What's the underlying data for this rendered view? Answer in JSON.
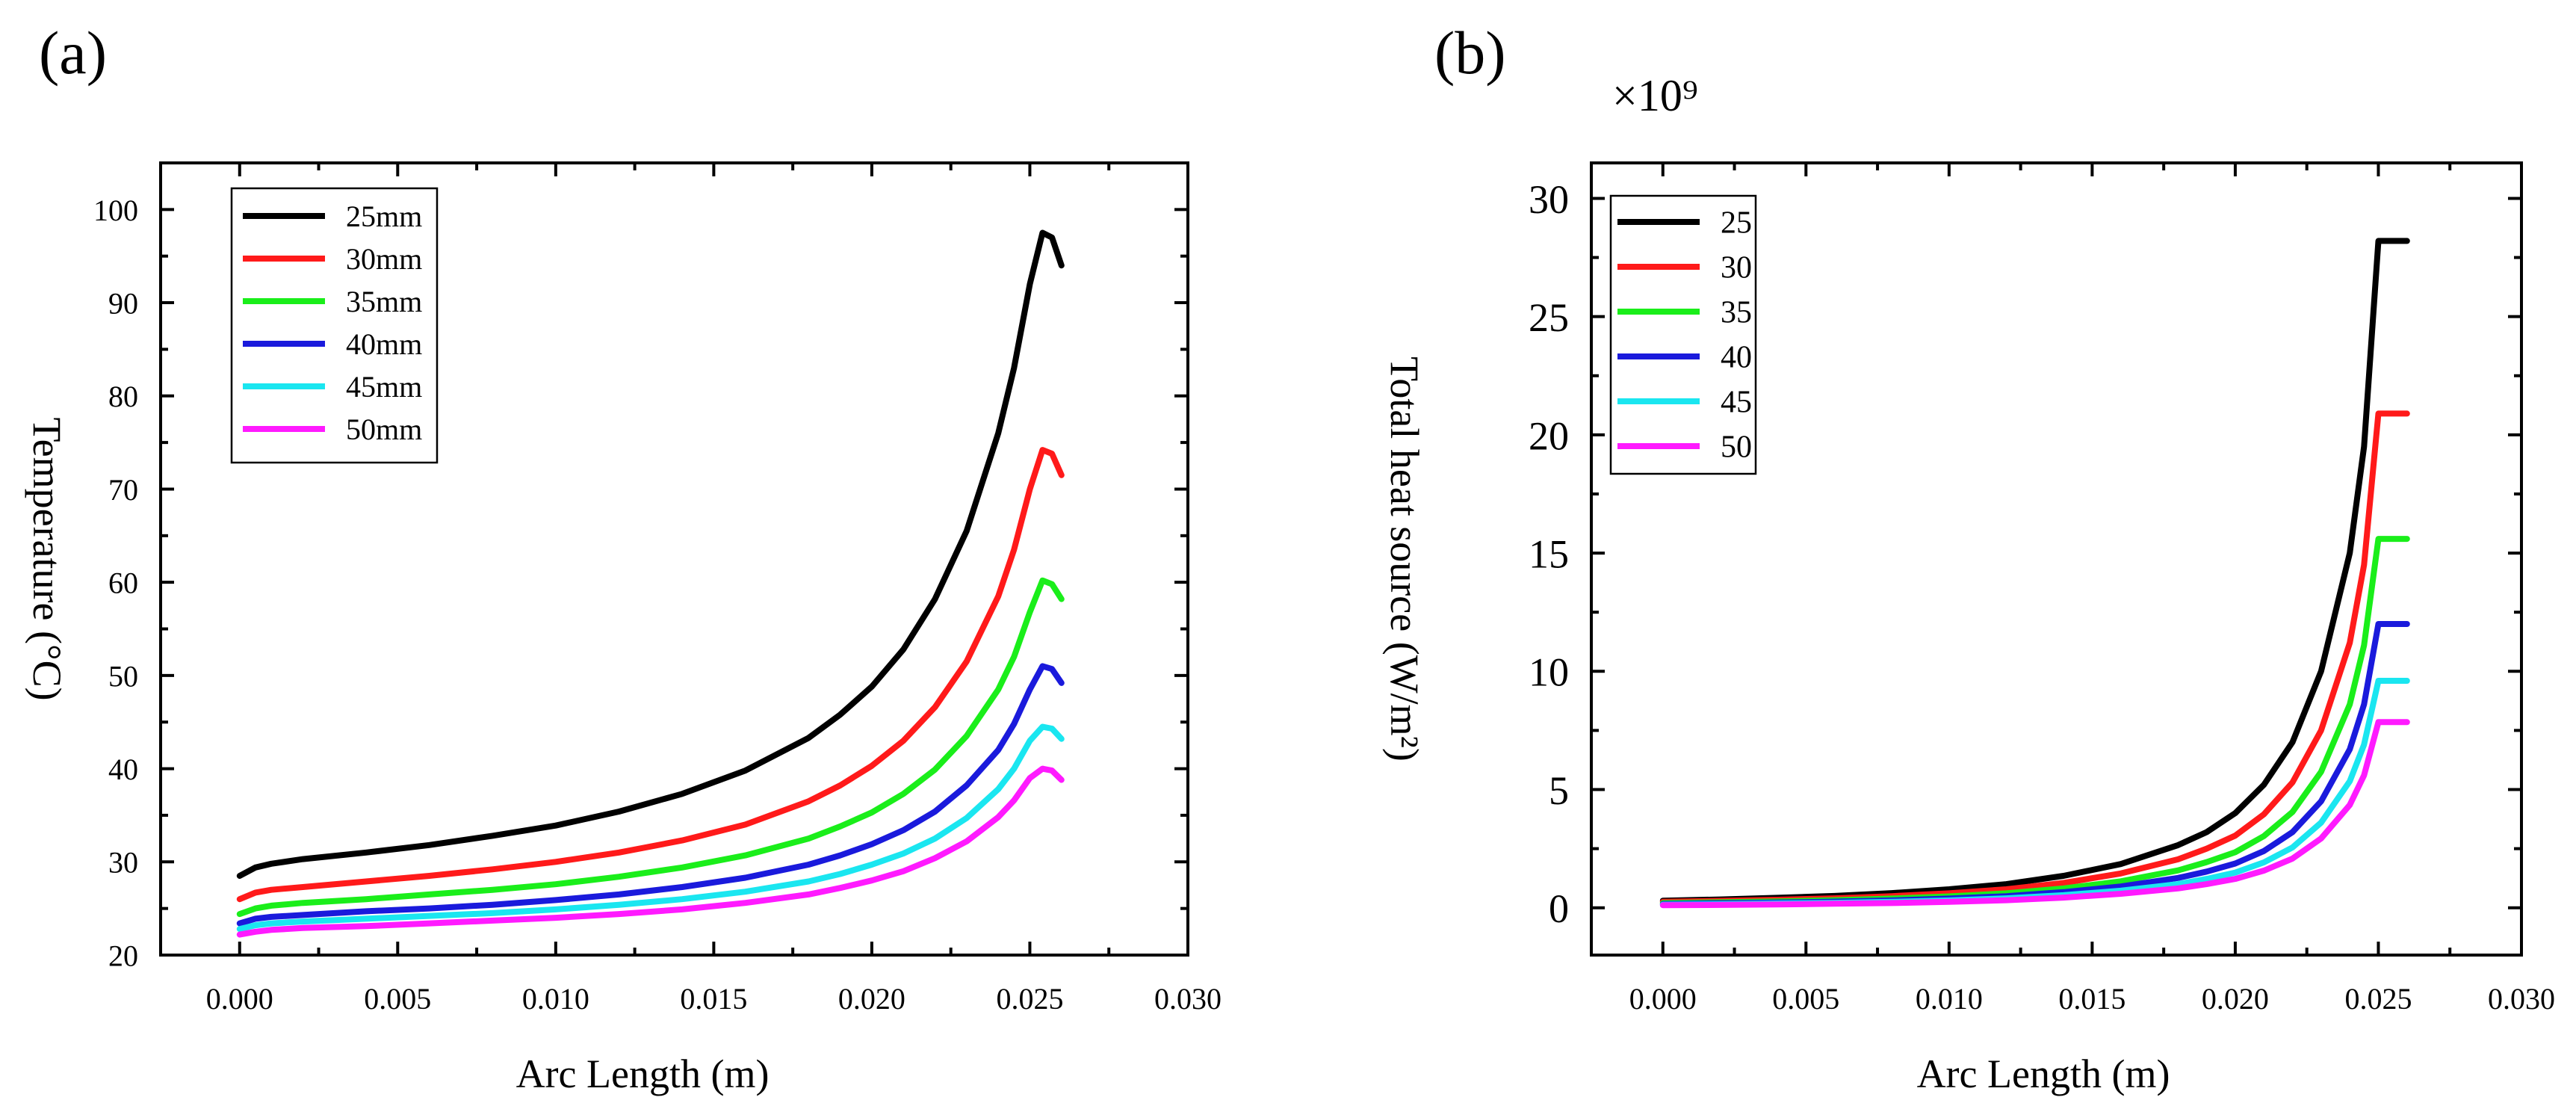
{
  "chart_data": [
    {
      "type": "line",
      "panel_label": "(a)",
      "xlabel": "Arc Length (m)",
      "ylabel": "Temperature (°C)",
      "xlim": [
        -0.0025,
        0.03
      ],
      "ylim": [
        20,
        105
      ],
      "xticks": [
        0.0,
        0.005,
        0.01,
        0.015,
        0.02,
        0.025,
        0.03
      ],
      "xtick_labels": [
        "0.000",
        "0.005",
        "0.010",
        "0.015",
        "0.020",
        "0.025",
        "0.030"
      ],
      "yticks": [
        20,
        30,
        40,
        50,
        60,
        70,
        80,
        90,
        100
      ],
      "ytick_labels": [
        "20",
        "30",
        "40",
        "50",
        "60",
        "70",
        "80",
        "90",
        "100"
      ],
      "legend_position": "top-left",
      "x": [
        0.0,
        0.0005,
        0.001,
        0.002,
        0.004,
        0.006,
        0.008,
        0.01,
        0.012,
        0.014,
        0.016,
        0.018,
        0.019,
        0.02,
        0.021,
        0.022,
        0.023,
        0.024,
        0.0245,
        0.025,
        0.0254,
        0.0257,
        0.026
      ],
      "series": [
        {
          "name": "25mm",
          "color": "#000000",
          "values": [
            28.5,
            29.4,
            29.8,
            30.3,
            31.0,
            31.8,
            32.8,
            33.9,
            35.4,
            37.3,
            39.8,
            43.3,
            45.8,
            48.8,
            52.8,
            58.2,
            65.5,
            76.0,
            83.0,
            92.0,
            97.5,
            97.0,
            94.0
          ]
        },
        {
          "name": "30mm",
          "color": "#ff1a1a",
          "values": [
            26.0,
            26.7,
            27.0,
            27.3,
            27.9,
            28.5,
            29.2,
            30.0,
            31.0,
            32.3,
            34.0,
            36.5,
            38.2,
            40.3,
            43.0,
            46.6,
            51.5,
            58.5,
            63.5,
            70.0,
            74.2,
            73.8,
            71.5
          ]
        },
        {
          "name": "35mm",
          "color": "#1aee1a",
          "values": [
            24.4,
            25.0,
            25.3,
            25.6,
            26.0,
            26.5,
            27.0,
            27.6,
            28.4,
            29.4,
            30.7,
            32.5,
            33.8,
            35.3,
            37.3,
            39.9,
            43.5,
            48.5,
            52.0,
            56.8,
            60.2,
            59.8,
            58.2
          ]
        },
        {
          "name": "40mm",
          "color": "#1a1adc",
          "values": [
            23.4,
            23.9,
            24.1,
            24.3,
            24.7,
            25.0,
            25.4,
            25.9,
            26.5,
            27.3,
            28.3,
            29.7,
            30.7,
            31.9,
            33.4,
            35.4,
            38.2,
            42.0,
            44.8,
            48.5,
            51.0,
            50.7,
            49.2
          ]
        },
        {
          "name": "45mm",
          "color": "#1ae6f0",
          "values": [
            22.8,
            23.2,
            23.4,
            23.6,
            23.9,
            24.2,
            24.5,
            24.9,
            25.4,
            26.0,
            26.8,
            27.9,
            28.7,
            29.7,
            30.9,
            32.5,
            34.7,
            37.8,
            40.0,
            43.0,
            44.5,
            44.3,
            43.2
          ]
        },
        {
          "name": "50mm",
          "color": "#ff1aff",
          "values": [
            22.2,
            22.5,
            22.7,
            22.9,
            23.1,
            23.4,
            23.7,
            24.0,
            24.4,
            24.9,
            25.6,
            26.5,
            27.2,
            28.0,
            29.0,
            30.4,
            32.2,
            34.8,
            36.6,
            39.0,
            40.0,
            39.8,
            38.8
          ]
        }
      ]
    },
    {
      "type": "line",
      "panel_label": "(b)",
      "xlabel": "Arc Length (m)",
      "ylabel": "Total heat source (W/m²)",
      "multiplier_label": "×10⁹",
      "xlim": [
        -0.0025,
        0.03
      ],
      "ylim": [
        -2,
        31.5
      ],
      "xticks": [
        0.0,
        0.005,
        0.01,
        0.015,
        0.02,
        0.025,
        0.03
      ],
      "xtick_labels": [
        "0.000",
        "0.005",
        "0.010",
        "0.015",
        "0.020",
        "0.025",
        "0.030"
      ],
      "yticks": [
        0,
        5,
        10,
        15,
        20,
        25,
        30
      ],
      "ytick_labels": [
        "0",
        "5",
        "10",
        "15",
        "20",
        "25",
        "30"
      ],
      "legend_position": "top-left",
      "x": [
        0.0,
        0.002,
        0.004,
        0.006,
        0.008,
        0.01,
        0.012,
        0.014,
        0.016,
        0.018,
        0.019,
        0.02,
        0.021,
        0.022,
        0.023,
        0.024,
        0.0245,
        0.025,
        0.02525,
        0.026
      ],
      "series": [
        {
          "name": "25",
          "color": "#000000",
          "values": [
            0.3,
            0.35,
            0.42,
            0.5,
            0.62,
            0.78,
            1.0,
            1.35,
            1.85,
            2.65,
            3.2,
            4.0,
            5.2,
            7.0,
            10.0,
            15.0,
            19.5,
            28.2,
            28.2,
            28.2
          ]
        },
        {
          "name": "30",
          "color": "#ff1a1a",
          "values": [
            0.25,
            0.29,
            0.34,
            0.4,
            0.49,
            0.61,
            0.78,
            1.05,
            1.45,
            2.05,
            2.5,
            3.05,
            3.95,
            5.3,
            7.5,
            11.2,
            14.5,
            20.9,
            20.9,
            20.9
          ]
        },
        {
          "name": "35",
          "color": "#1aee1a",
          "values": [
            0.2,
            0.23,
            0.27,
            0.32,
            0.39,
            0.48,
            0.61,
            0.82,
            1.12,
            1.58,
            1.93,
            2.35,
            3.03,
            4.05,
            5.75,
            8.6,
            11.1,
            15.6,
            15.6,
            15.6
          ]
        },
        {
          "name": "40",
          "color": "#1a1adc",
          "values": [
            0.16,
            0.19,
            0.22,
            0.26,
            0.31,
            0.39,
            0.49,
            0.66,
            0.9,
            1.26,
            1.53,
            1.87,
            2.4,
            3.2,
            4.5,
            6.7,
            8.6,
            12.0,
            12.0,
            12.0
          ]
        },
        {
          "name": "45",
          "color": "#1ae6f0",
          "values": [
            0.13,
            0.15,
            0.18,
            0.21,
            0.25,
            0.31,
            0.4,
            0.53,
            0.72,
            1.0,
            1.22,
            1.49,
            1.92,
            2.55,
            3.6,
            5.35,
            6.9,
            9.6,
            9.6,
            9.6
          ]
        },
        {
          "name": "50",
          "color": "#ff1aff",
          "values": [
            0.11,
            0.12,
            0.14,
            0.17,
            0.2,
            0.25,
            0.32,
            0.43,
            0.59,
            0.82,
            1.0,
            1.22,
            1.57,
            2.08,
            2.93,
            4.35,
            5.6,
            7.85,
            7.85,
            7.85
          ]
        }
      ]
    }
  ]
}
